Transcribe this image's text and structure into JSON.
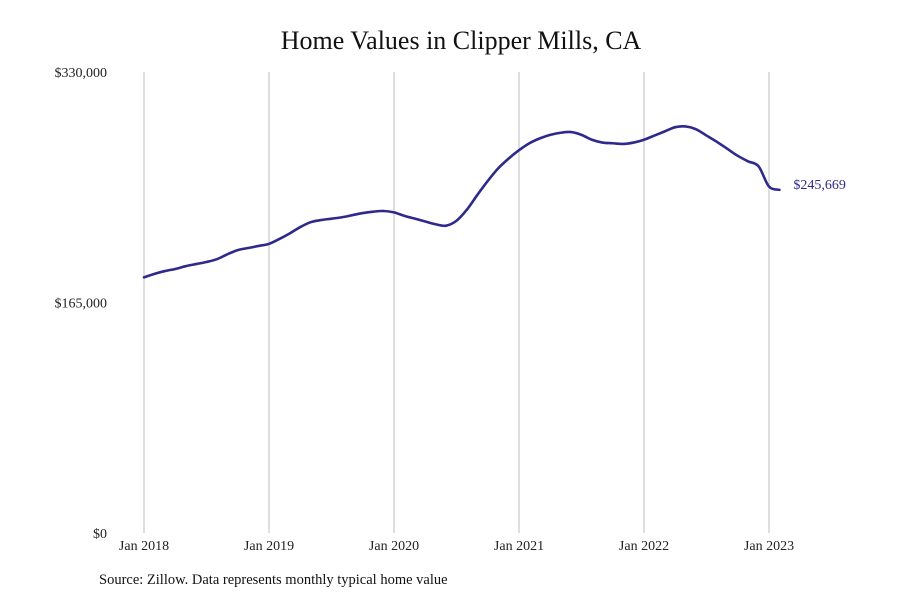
{
  "title": "Home Values in Clipper Mills, CA",
  "source_note": "Source: Zillow. Data represents monthly typical home value",
  "colors": {
    "line": "#2e2a8c",
    "grid": "#bdbdbd",
    "text": "#222222",
    "background": "#ffffff"
  },
  "chart_data": {
    "type": "line",
    "title": "Home Values in Clipper Mills, CA",
    "xlabel": "",
    "ylabel": "",
    "ylim": [
      0,
      330000
    ],
    "y_ticks": [
      {
        "value": 0,
        "label": "$0"
      },
      {
        "value": 165000,
        "label": "$165,000"
      },
      {
        "value": 330000,
        "label": "$330,000"
      }
    ],
    "x_ticks": [
      {
        "value": 2018.0,
        "label": "Jan 2018"
      },
      {
        "value": 2019.0,
        "label": "Jan 2019"
      },
      {
        "value": 2020.0,
        "label": "Jan 2020"
      },
      {
        "value": 2021.0,
        "label": "Jan 2021"
      },
      {
        "value": 2022.0,
        "label": "Jan 2022"
      },
      {
        "value": 2023.0,
        "label": "Jan 2023"
      }
    ],
    "xlim": [
      2018.0,
      2023.0
    ],
    "grid": {
      "vertical": true,
      "horizontal": false
    },
    "end_label": "$245,669",
    "series": [
      {
        "x": [
          "2018-01",
          "2018-02",
          "2018-03",
          "2018-04",
          "2018-05",
          "2018-06",
          "2018-07",
          "2018-08",
          "2018-09",
          "2018-10",
          "2018-11",
          "2018-12",
          "2019-01",
          "2019-02",
          "2019-03",
          "2019-04",
          "2019-05",
          "2019-06",
          "2019-07",
          "2019-08",
          "2019-09",
          "2019-10",
          "2019-11",
          "2019-12",
          "2020-01",
          "2020-02",
          "2020-03",
          "2020-04",
          "2020-05",
          "2020-06",
          "2020-07",
          "2020-08",
          "2020-09",
          "2020-10",
          "2020-11",
          "2020-12",
          "2021-01",
          "2021-02",
          "2021-03",
          "2021-04",
          "2021-05",
          "2021-06",
          "2021-07",
          "2021-08",
          "2021-09",
          "2021-10",
          "2021-11",
          "2021-12",
          "2022-01",
          "2022-02",
          "2022-03",
          "2022-04",
          "2022-05",
          "2022-06",
          "2022-07",
          "2022-08",
          "2022-09",
          "2022-10",
          "2022-11",
          "2022-12",
          "2023-01",
          "2023-02"
        ],
        "values": [
          183000,
          185500,
          187500,
          189000,
          191000,
          192500,
          194000,
          196000,
          199500,
          202500,
          204000,
          205500,
          207000,
          210500,
          214500,
          219000,
          222500,
          224000,
          225000,
          226000,
          227500,
          229000,
          230000,
          230500,
          229500,
          227000,
          225000,
          223000,
          221000,
          220000,
          223500,
          231500,
          242000,
          252000,
          261000,
          268000,
          274000,
          279000,
          282500,
          285000,
          286500,
          287000,
          285000,
          281500,
          279500,
          279000,
          278500,
          279500,
          281500,
          284500,
          287500,
          290500,
          291000,
          289000,
          284500,
          280000,
          275000,
          270000,
          266000,
          262500,
          248000,
          245669
        ]
      }
    ]
  }
}
